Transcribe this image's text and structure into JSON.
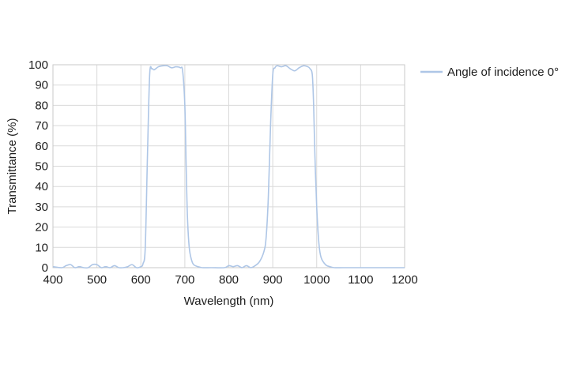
{
  "chart_data": {
    "type": "line",
    "title": "",
    "xlabel": "Wavelength (nm)",
    "ylabel": "Transmittance (%)",
    "xlim": [
      400,
      1200
    ],
    "ylim": [
      0,
      100
    ],
    "xticks": [
      400,
      500,
      600,
      700,
      800,
      900,
      1000,
      1100,
      1200
    ],
    "yticks": [
      0,
      10,
      20,
      30,
      40,
      50,
      60,
      70,
      80,
      90,
      100
    ],
    "grid": true,
    "legend_position": "top-right-outside",
    "series": [
      {
        "name": "Angle of incidence 0°",
        "color": "#aec6e6",
        "x": [
          400,
          420,
          430,
          440,
          450,
          460,
          470,
          480,
          490,
          500,
          510,
          520,
          530,
          540,
          550,
          560,
          570,
          580,
          590,
          600,
          605,
          610,
          615,
          620,
          625,
          630,
          640,
          650,
          660,
          670,
          680,
          690,
          695,
          700,
          703,
          706,
          710,
          715,
          720,
          730,
          740,
          760,
          790,
          800,
          810,
          820,
          830,
          840,
          850,
          860,
          870,
          880,
          885,
          890,
          895,
          900,
          905,
          910,
          920,
          930,
          940,
          950,
          960,
          970,
          980,
          985,
          990,
          993,
          996,
          1000,
          1005,
          1010,
          1020,
          1030,
          1040,
          1060,
          1100,
          1150,
          1200
        ],
        "y": [
          0.5,
          0,
          1,
          1.5,
          0,
          0.5,
          0,
          0,
          1.5,
          1.5,
          0,
          0.5,
          0,
          1,
          0,
          0,
          0.5,
          1.5,
          0,
          0.5,
          2,
          10,
          55,
          95,
          98,
          97.5,
          99,
          99.5,
          99.5,
          98.5,
          99,
          98.5,
          97,
          80,
          50,
          25,
          10,
          4,
          1.5,
          0.5,
          0,
          0,
          0,
          1,
          0.5,
          1,
          0,
          1,
          0,
          1,
          3,
          8,
          15,
          35,
          70,
          95,
          98.5,
          99.5,
          99,
          99.5,
          98,
          97,
          98.5,
          99.5,
          99,
          98,
          95,
          80,
          55,
          30,
          12,
          5,
          1.5,
          0.5,
          0,
          0,
          0,
          0,
          0
        ]
      }
    ]
  }
}
